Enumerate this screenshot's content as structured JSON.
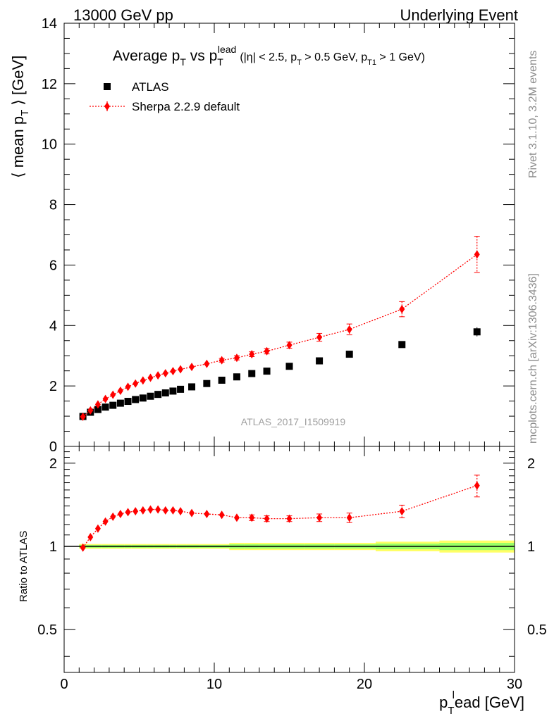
{
  "header": {
    "left": "13000 GeV pp",
    "right": "Underlying Event"
  },
  "side": {
    "rivet": "Rivet 3.1.10,  3.2M events",
    "mcplots": "mcplots.cern.ch [arXiv:1306.3436]"
  },
  "colors": {
    "data": "#000000",
    "mc": "#ff0000",
    "band_outer": "#ffff66",
    "band_inner": "#99ff66",
    "watermark": "#a0a0a0"
  },
  "chart_data": {
    "type": "scatter",
    "title": "Average p_T vs p_T^lead (|η| < 2.5, p_T > 0.5 GeV, p_T1 > 1 GeV)",
    "title_parts": {
      "main_a": "Average p",
      "main_a_sub": "T",
      "main_b": " vs p",
      "main_b_sub": "T",
      "main_b_sup": "lead",
      "cuts_a": "(|η| < 2.5, p",
      "cuts_a_sub": "T",
      "cuts_b": " > 0.5 GeV, p",
      "cuts_b_sub": "T1",
      "cuts_c": " > 1 GeV)"
    },
    "ylabel_parts": {
      "a": "⟨ mean p",
      "sub": "T",
      "b": " ⟩ [GeV]"
    },
    "xlabel_parts": {
      "a": "p",
      "sub": "T",
      "sup": "l",
      "b": "ead [GeV]"
    },
    "ratio_ylabel": "Ratio to ATLAS",
    "watermark": "ATLAS_2017_I1509919",
    "legend": {
      "placement": "top-left",
      "data_label": "ATLAS",
      "mc_label": "Sherpa 2.2.9 default"
    },
    "xlim": [
      0,
      30
    ],
    "ylim": [
      0,
      14
    ],
    "ratio_ylim": [
      0.35,
      2.3
    ],
    "x_ticks": [
      "0",
      "10",
      "20",
      "30"
    ],
    "y_ticks": [
      "0",
      "2",
      "4",
      "6",
      "8",
      "10",
      "12",
      "14"
    ],
    "ratio_ticks": [
      "0.5",
      "1",
      "2"
    ],
    "x": [
      1.25,
      1.75,
      2.25,
      2.75,
      3.25,
      3.75,
      4.25,
      4.75,
      5.25,
      5.75,
      6.25,
      6.75,
      7.25,
      7.75,
      8.5,
      9.5,
      10.5,
      11.5,
      12.5,
      13.5,
      15.0,
      17.0,
      19.0,
      22.5,
      27.5
    ],
    "series": [
      {
        "name": "ATLAS",
        "y": [
          0.99,
          1.13,
          1.22,
          1.3,
          1.36,
          1.43,
          1.49,
          1.55,
          1.6,
          1.66,
          1.72,
          1.77,
          1.83,
          1.89,
          1.97,
          2.08,
          2.19,
          2.3,
          2.41,
          2.49,
          2.65,
          2.83,
          3.05,
          3.37,
          3.79
        ],
        "yerr": [
          0.02,
          0.02,
          0.02,
          0.02,
          0.02,
          0.02,
          0.02,
          0.02,
          0.02,
          0.02,
          0.02,
          0.02,
          0.02,
          0.02,
          0.02,
          0.03,
          0.03,
          0.03,
          0.03,
          0.04,
          0.05,
          0.06,
          0.08,
          0.1,
          0.15
        ]
      },
      {
        "name": "Sherpa 2.2.9 default",
        "y": [
          0.98,
          1.19,
          1.39,
          1.57,
          1.71,
          1.84,
          1.97,
          2.08,
          2.18,
          2.27,
          2.35,
          2.42,
          2.49,
          2.55,
          2.63,
          2.73,
          2.85,
          2.93,
          3.05,
          3.15,
          3.35,
          3.61,
          3.87,
          4.54,
          6.35
        ],
        "yerr": [
          0.01,
          0.01,
          0.01,
          0.01,
          0.01,
          0.01,
          0.01,
          0.01,
          0.02,
          0.02,
          0.02,
          0.03,
          0.03,
          0.03,
          0.04,
          0.05,
          0.06,
          0.07,
          0.08,
          0.09,
          0.1,
          0.13,
          0.18,
          0.25,
          0.6
        ]
      }
    ],
    "ratio": {
      "y": [
        0.99,
        1.08,
        1.16,
        1.23,
        1.28,
        1.31,
        1.33,
        1.34,
        1.35,
        1.36,
        1.36,
        1.35,
        1.35,
        1.34,
        1.32,
        1.31,
        1.3,
        1.27,
        1.27,
        1.26,
        1.26,
        1.27,
        1.27,
        1.34,
        1.66
      ],
      "yerr": [
        0.01,
        0.01,
        0.01,
        0.01,
        0.01,
        0.01,
        0.01,
        0.01,
        0.01,
        0.01,
        0.01,
        0.01,
        0.01,
        0.02,
        0.02,
        0.02,
        0.02,
        0.02,
        0.03,
        0.03,
        0.03,
        0.04,
        0.05,
        0.07,
        0.15
      ],
      "band": [
        0.02,
        0.02,
        0.02,
        0.02,
        0.02,
        0.02,
        0.02,
        0.02,
        0.02,
        0.02,
        0.02,
        0.02,
        0.02,
        0.02,
        0.02,
        0.02,
        0.02,
        0.03,
        0.03,
        0.03,
        0.03,
        0.03,
        0.03,
        0.04,
        0.05
      ]
    }
  }
}
